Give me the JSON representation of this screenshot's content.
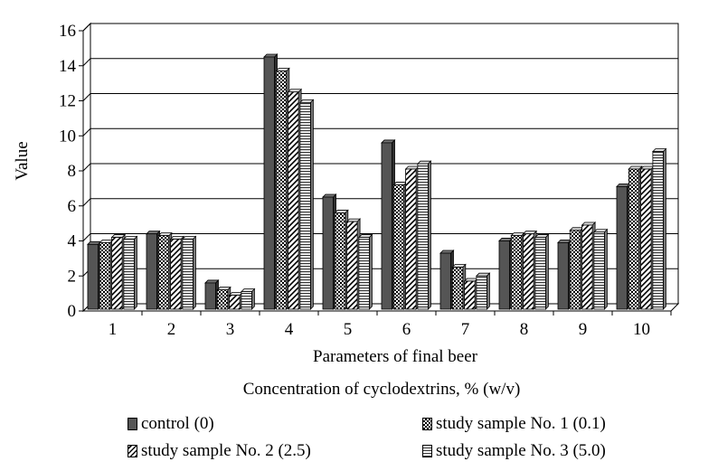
{
  "chart_data": {
    "type": "bar",
    "style": "3d-clustered",
    "categories": [
      "1",
      "2",
      "3",
      "4",
      "5",
      "6",
      "7",
      "8",
      "9",
      "10"
    ],
    "series": [
      {
        "name": "control (0)",
        "pattern": "solid-dark",
        "color": "#555555",
        "values": [
          3.7,
          4.3,
          1.5,
          14.4,
          6.4,
          9.5,
          3.2,
          3.9,
          3.8,
          7.0
        ]
      },
      {
        "name": "study sample No. 1 (0.1)",
        "pattern": "checker",
        "values": [
          3.8,
          4.2,
          1.1,
          13.6,
          5.5,
          7.1,
          2.4,
          4.2,
          4.5,
          8.0
        ]
      },
      {
        "name": "study sample No. 2 (2.5)",
        "pattern": "diagonal-stripes",
        "values": [
          4.1,
          4.0,
          0.8,
          12.4,
          5.0,
          8.0,
          1.6,
          4.3,
          4.8,
          8.0
        ]
      },
      {
        "name": "study sample No. 3 (5.0)",
        "pattern": "horizontal-stripes",
        "values": [
          4.0,
          4.0,
          1.0,
          11.8,
          4.1,
          8.3,
          1.9,
          4.1,
          4.4,
          9.0
        ]
      }
    ],
    "ylabel": "Value",
    "xlabel": "Parameters of final beer",
    "yticks": [
      "0",
      "2",
      "4",
      "6",
      "8",
      "10",
      "12",
      "14",
      "16"
    ],
    "ylim": [
      0,
      16
    ],
    "grid": true,
    "legend_title": "Concentration of cyclodextrins, % (w/v)",
    "legend_position": "bottom"
  }
}
